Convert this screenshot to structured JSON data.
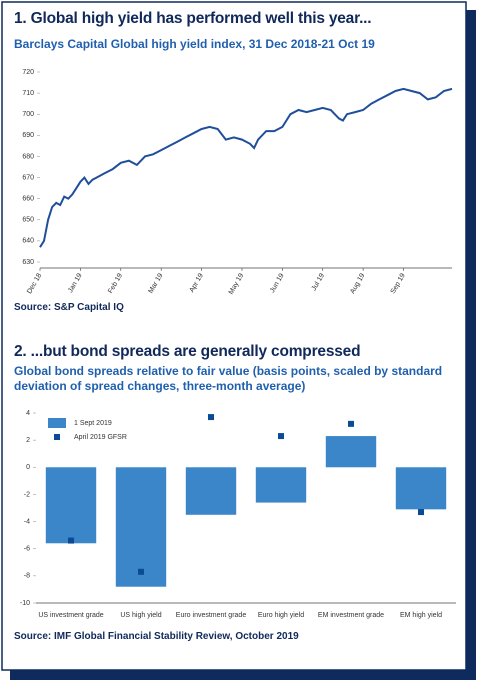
{
  "chart_data": [
    {
      "type": "line",
      "title": "1. Global high yield has performed well this year...",
      "subtitle": "Barclays Capital Global high yield index, 31 Dec 2018-21 Oct 19",
      "source": "Source: S&P Capital IQ",
      "color": "#1f4f9a",
      "x": [
        0,
        0.1,
        0.2,
        0.3,
        0.4,
        0.5,
        0.6,
        0.7,
        0.8,
        0.9,
        1.0,
        1.1,
        1.2,
        1.3,
        1.4,
        1.6,
        1.8,
        2.0,
        2.2,
        2.4,
        2.6,
        2.8,
        3.0,
        3.2,
        3.4,
        3.6,
        3.8,
        4.0,
        4.2,
        4.4,
        4.6,
        4.8,
        5.0,
        5.2,
        5.3,
        5.4,
        5.6,
        5.8,
        6.0,
        6.2,
        6.4,
        6.6,
        6.8,
        7.0,
        7.2,
        7.4,
        7.5,
        7.6,
        7.8,
        8.0,
        8.2,
        8.4,
        8.6,
        8.8,
        9.0,
        9.2,
        9.4,
        9.6,
        9.8,
        10.0,
        10.2
      ],
      "values": [
        637,
        640,
        650,
        656,
        658,
        657,
        661,
        660,
        662,
        665,
        668,
        670,
        667,
        669,
        670,
        672,
        674,
        677,
        678,
        676,
        680,
        681,
        683,
        685,
        687,
        689,
        691,
        693,
        694,
        693,
        688,
        689,
        688,
        686,
        684,
        688,
        692,
        692,
        694,
        700,
        702,
        701,
        702,
        703,
        702,
        698,
        697,
        700,
        701,
        702,
        705,
        707,
        709,
        711,
        712,
        711,
        710,
        707,
        708,
        711,
        712
      ],
      "xlim": [
        0,
        10.2
      ],
      "xticks": [
        {
          "value": 0,
          "label": "Dec 18"
        },
        {
          "value": 1,
          "label": "Jan 19"
        },
        {
          "value": 2,
          "label": "Feb 19"
        },
        {
          "value": 3,
          "label": "Mar 19"
        },
        {
          "value": 4,
          "label": "Apr 19"
        },
        {
          "value": 5,
          "label": "May 19"
        },
        {
          "value": 6,
          "label": "Jun 19"
        },
        {
          "value": 7,
          "label": "Jul 19"
        },
        {
          "value": 8,
          "label": "Aug 19"
        },
        {
          "value": 9,
          "label": "Sep 19"
        }
      ],
      "ylim": [
        630,
        720
      ],
      "yticks": [
        630,
        640,
        650,
        660,
        670,
        680,
        690,
        700,
        710,
        720
      ],
      "grid": false
    },
    {
      "type": "bar",
      "title": "2. ...but bond spreads are generally compressed",
      "subtitle": "Global bond spreads relative to fair value (basis points, scaled by standard deviation of spread changes, three-month average)",
      "source": "Source: IMF Global Financial Stability Review, October 2019",
      "categories": [
        "US investment grade",
        "US high yield",
        "Euro investment grade",
        "Euro high yield",
        "EM investment grade",
        "EM high yield"
      ],
      "series": [
        {
          "name": "1 Sept 2019",
          "type": "bar",
          "color": "#3a86c8",
          "values": [
            -5.6,
            -8.8,
            -3.5,
            -2.6,
            2.3,
            -3.1
          ]
        },
        {
          "name": "April 2019 GFSR",
          "type": "scatter",
          "color": "#0b4a94",
          "values": [
            -5.4,
            -7.7,
            3.7,
            2.3,
            3.2,
            -3.3
          ]
        }
      ],
      "ylim": [
        -10,
        4
      ],
      "yticks": [
        -10,
        -8,
        -6,
        -4,
        -2,
        0,
        2,
        4
      ],
      "legend": "upper left",
      "grid": false
    }
  ]
}
